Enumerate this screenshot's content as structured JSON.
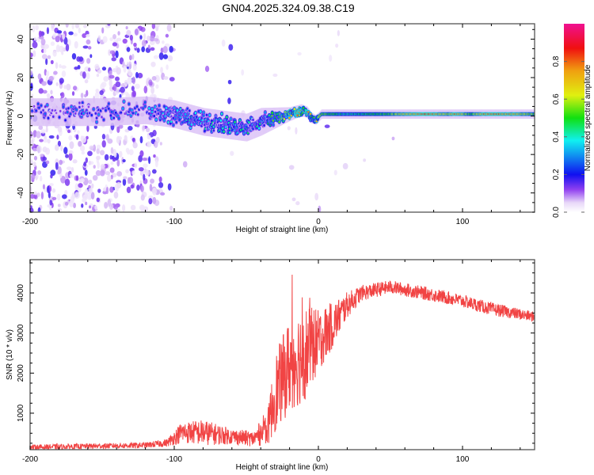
{
  "title": "GN04.2025.324.09.38.C19",
  "colors": {
    "snr_line": "#f03030",
    "frame": "#555555"
  },
  "chart_data": [
    {
      "type": "heatmap",
      "name": "spectrogram",
      "xlabel": "Height of straight line (km)",
      "ylabel": "Frequency (Hz)",
      "xlim": [
        -200,
        150
      ],
      "ylim": [
        -50,
        48
      ],
      "xticks": [
        -200,
        -100,
        0,
        100
      ],
      "xtick_labels": [
        "-200",
        "-100",
        "0",
        "100"
      ],
      "yticks": [
        -40,
        -20,
        0,
        20,
        40
      ],
      "ytick_labels": [
        "-40",
        "-20",
        "0",
        "20",
        "40"
      ],
      "colorbar": {
        "label": "Normalized spectral amplitude",
        "range": [
          0,
          1
        ],
        "ticks": [
          0.0,
          0.2,
          0.4,
          0.6,
          0.8
        ],
        "tick_labels": [
          "0.0",
          "0.2",
          "0.4",
          "0.6",
          "0.8"
        ]
      },
      "ridge_track": [
        [
          -200,
          2
        ],
        [
          -150,
          2
        ],
        [
          -120,
          3
        ],
        [
          -100,
          1
        ],
        [
          -80,
          -3
        ],
        [
          -60,
          -5
        ],
        [
          -50,
          -6
        ],
        [
          -40,
          -3
        ],
        [
          -30,
          -1
        ],
        [
          -20,
          1
        ],
        [
          -12,
          3
        ],
        [
          -8,
          2
        ],
        [
          -5,
          -1
        ],
        [
          -2,
          -2
        ],
        [
          2,
          1
        ],
        [
          10,
          1
        ],
        [
          50,
          1
        ],
        [
          100,
          1
        ],
        [
          150,
          1
        ]
      ],
      "ridge_amplitude": [
        [
          -200,
          0.25
        ],
        [
          -120,
          0.3
        ],
        [
          -100,
          0.35
        ],
        [
          -40,
          0.4
        ],
        [
          -30,
          0.6
        ],
        [
          -15,
          0.85
        ],
        [
          0,
          0.6
        ],
        [
          20,
          0.45
        ],
        [
          50,
          0.55
        ],
        [
          75,
          0.9
        ],
        [
          90,
          0.6
        ],
        [
          95,
          0.85
        ],
        [
          105,
          0.55
        ],
        [
          120,
          0.9
        ],
        [
          150,
          0.6
        ]
      ],
      "ridge_spread_hz": [
        [
          -200,
          6
        ],
        [
          -100,
          6
        ],
        [
          -40,
          6
        ],
        [
          -20,
          3
        ],
        [
          0,
          2
        ],
        [
          150,
          2
        ]
      ],
      "noise_density": [
        [
          -200,
          1
        ],
        [
          -112,
          1
        ],
        [
          -108,
          0.4
        ],
        [
          -100,
          0.02
        ],
        [
          -70,
          0.02
        ],
        [
          -62,
          0.15
        ],
        [
          -55,
          0.02
        ],
        [
          150,
          0
        ]
      ]
    },
    {
      "type": "line",
      "name": "snr",
      "xlabel": "Height of straight line (km)",
      "ylabel": "SNR (10 * v/v)",
      "xlim": [
        -200,
        150
      ],
      "ylim": [
        90,
        4830
      ],
      "xticks": [
        -200,
        -100,
        0,
        100
      ],
      "xtick_labels": [
        "-200",
        "-100",
        "0",
        "100"
      ],
      "yticks": [
        1000,
        2000,
        3000,
        4000
      ],
      "ytick_labels": [
        "1000",
        "2000",
        "3000",
        "4000"
      ],
      "envelope": [
        [
          -200,
          150,
          100
        ],
        [
          -120,
          200,
          110
        ],
        [
          -105,
          260,
          150
        ],
        [
          -95,
          520,
          400
        ],
        [
          -80,
          520,
          500
        ],
        [
          -60,
          420,
          300
        ],
        [
          -45,
          360,
          300
        ],
        [
          -35,
          650,
          700
        ],
        [
          -30,
          1500,
          1500
        ],
        [
          -20,
          2200,
          1800
        ],
        [
          -10,
          2500,
          1900
        ],
        [
          0,
          2800,
          1200
        ],
        [
          10,
          3200,
          900
        ],
        [
          20,
          3700,
          500
        ],
        [
          30,
          4000,
          300
        ],
        [
          50,
          4150,
          260
        ],
        [
          80,
          3950,
          260
        ],
        [
          100,
          3800,
          250
        ],
        [
          120,
          3600,
          250
        ],
        [
          150,
          3400,
          200
        ]
      ]
    }
  ]
}
